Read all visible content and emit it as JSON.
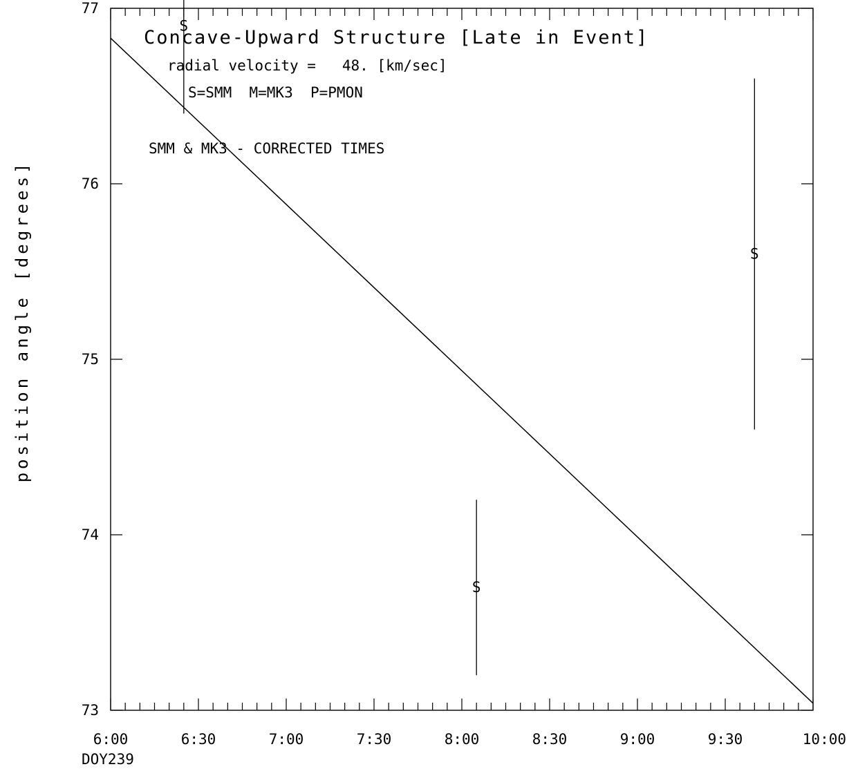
{
  "chart_data": {
    "type": "scatter",
    "title": "Concave-Upward Structure [Late in Event]",
    "annotations": {
      "velocity": "radial velocity =   48. [km/sec]",
      "legend_key": "S=SMM  M=MK3  P=PMON",
      "note": "SMM & MK3 - CORRECTED TIMES"
    },
    "xlabel": "",
    "ylabel": "position angle [degrees]",
    "x_date_label": "DOY239",
    "xlim": [
      "6:00",
      "10:00"
    ],
    "ylim": [
      73,
      77
    ],
    "x_ticks": [
      "6:00",
      "6:30",
      "7:00",
      "7:30",
      "8:00",
      "8:30",
      "9:00",
      "9:30",
      "10:00"
    ],
    "y_ticks": [
      "73",
      "74",
      "75",
      "76",
      "77"
    ],
    "points": [
      {
        "marker": "S",
        "x": "6:25",
        "y": 76.9,
        "y_err_low": 76.4,
        "y_err_high": 77.5
      },
      {
        "marker": "S",
        "x": "8:05",
        "y": 73.7,
        "y_err_low": 73.2,
        "y_err_high": 74.2
      },
      {
        "marker": "S",
        "x": "9:40",
        "y": 75.6,
        "y_err_low": 74.6,
        "y_err_high": 76.6
      }
    ],
    "fit_line": {
      "x": [
        "6:00",
        "10:00"
      ],
      "y": [
        76.83,
        73.04
      ]
    }
  }
}
